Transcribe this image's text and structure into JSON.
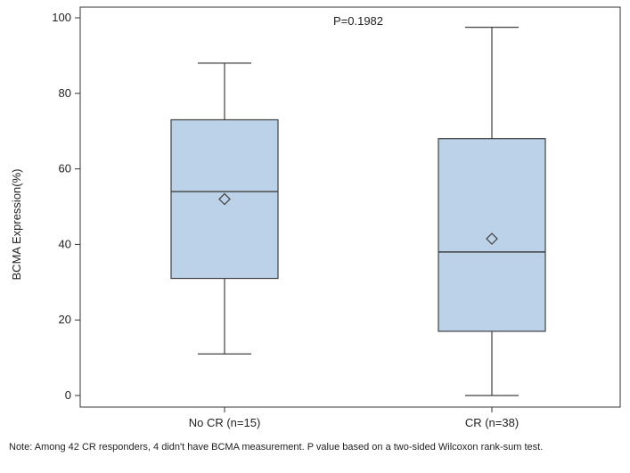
{
  "chart_data": {
    "type": "box",
    "ylabel": "BCMA Expression(%)",
    "xlabel": "",
    "ylim": [
      0,
      100
    ],
    "yticks": [
      0,
      20,
      40,
      60,
      80,
      100
    ],
    "annotation": "P=0.1982",
    "grid": false,
    "categories": [
      "No CR (n=15)",
      "CR (n=38)"
    ],
    "boxes": [
      {
        "category": "No CR (n=15)",
        "min": 11,
        "q1": 31,
        "median": 54,
        "mean": 52,
        "q3": 73,
        "max": 88
      },
      {
        "category": "CR (n=38)",
        "min": 0,
        "q1": 17,
        "median": 38,
        "mean": 41.5,
        "q3": 68,
        "max": 97.5
      }
    ],
    "colors": {
      "box_fill": "#bcd2e8",
      "stroke": "#404040",
      "axis": "#333333"
    }
  },
  "note": "Note: Among 42 CR responders, 4 didn't have BCMA measurement. P value based on a two-sided Wilcoxon rank-sum test."
}
